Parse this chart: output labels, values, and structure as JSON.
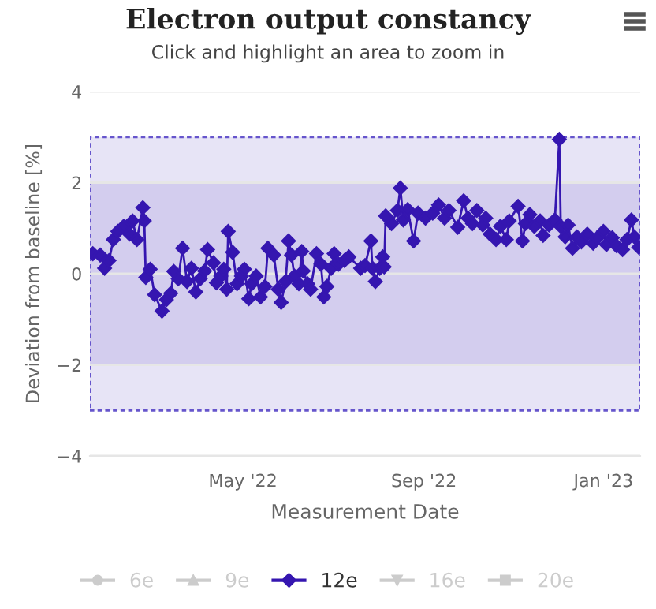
{
  "chart_data": {
    "type": "line",
    "title": "Electron output constancy",
    "subtitle": "Click and highlight an area to zoom in",
    "xlabel": "Measurement Date",
    "ylabel": "Deviation from baseline [%]",
    "xlim": [
      "2022-01-17",
      "2023-01-26"
    ],
    "xticks": [
      {
        "value": "2022-05-01",
        "label": "May '22"
      },
      {
        "value": "2022-09-01",
        "label": "Sep '22"
      },
      {
        "value": "2023-01-01",
        "label": "Jan '23"
      }
    ],
    "ylim": [
      -4,
      4
    ],
    "yticks": [
      {
        "value": -4,
        "label": "−4"
      },
      {
        "value": -2,
        "label": "−2"
      },
      0,
      2,
      4
    ],
    "grid": "y",
    "legend": "bottom",
    "line_style": "solid",
    "bands": [
      {
        "axis": "y",
        "from": -3,
        "to": 3,
        "color": "#e7e4f6"
      },
      {
        "axis": "y",
        "from": -2,
        "to": 2,
        "color": "#d3cdee"
      }
    ],
    "series": [
      {
        "name": "6e",
        "color": "#cccccc",
        "marker": "circle"
      },
      {
        "name": "9e",
        "color": "#cccccc",
        "marker": "triangle"
      },
      {
        "name": "12e",
        "color": "#3516b0",
        "marker": "diamond",
        "x": [
          "2022-01-19",
          "2022-01-24",
          "2022-01-27",
          "2022-01-30",
          "2022-02-02",
          "2022-02-05",
          "2022-02-09",
          "2022-02-13",
          "2022-02-15",
          "2022-02-18",
          "2022-02-22",
          "2022-02-23",
          "2022-02-24",
          "2022-02-27",
          "2022-03-02",
          "2022-03-07",
          "2022-03-10",
          "2022-03-13",
          "2022-03-15",
          "2022-03-18",
          "2022-03-21",
          "2022-03-24",
          "2022-03-27",
          "2022-03-30",
          "2022-04-02",
          "2022-04-05",
          "2022-04-07",
          "2022-04-11",
          "2022-04-13",
          "2022-04-16",
          "2022-04-18",
          "2022-04-20",
          "2022-04-21",
          "2022-04-24",
          "2022-04-27",
          "2022-04-30",
          "2022-05-02",
          "2022-05-05",
          "2022-05-07",
          "2022-05-10",
          "2022-05-13",
          "2022-05-16",
          "2022-05-18",
          "2022-05-22",
          "2022-05-25",
          "2022-05-27",
          "2022-05-30",
          "2022-06-01",
          "2022-06-03",
          "2022-06-05",
          "2022-06-08",
          "2022-06-10",
          "2022-06-11",
          "2022-06-14",
          "2022-06-16",
          "2022-06-20",
          "2022-06-23",
          "2022-06-25",
          "2022-06-27",
          "2022-06-30",
          "2022-07-02",
          "2022-07-05",
          "2022-07-09",
          "2022-07-12",
          "2022-07-20",
          "2022-07-23",
          "2022-07-27",
          "2022-07-28",
          "2022-07-30",
          "2022-08-02",
          "2022-08-04",
          "2022-08-05",
          "2022-08-06",
          "2022-08-10",
          "2022-08-14",
          "2022-08-16",
          "2022-08-18",
          "2022-08-21",
          "2022-08-25",
          "2022-08-28",
          "2022-09-02",
          "2022-09-07",
          "2022-09-11",
          "2022-09-15",
          "2022-09-18",
          "2022-09-24",
          "2022-09-28",
          "2022-10-01",
          "2022-10-04",
          "2022-10-07",
          "2022-10-11",
          "2022-10-13",
          "2022-10-16",
          "2022-10-20",
          "2022-10-23",
          "2022-10-27",
          "2022-10-29",
          "2022-11-04",
          "2022-11-07",
          "2022-11-09",
          "2022-11-12",
          "2022-11-15",
          "2022-11-19",
          "2022-11-21",
          "2022-11-25",
          "2022-11-29",
          "2022-12-02",
          "2022-12-03",
          "2022-12-06",
          "2022-12-08",
          "2022-12-11",
          "2022-12-14",
          "2022-12-17",
          "2022-12-21",
          "2022-12-25",
          "2022-12-28",
          "2023-01-01",
          "2023-01-03",
          "2023-01-07",
          "2023-01-10",
          "2023-01-14",
          "2023-01-17",
          "2023-01-20",
          "2023-01-22",
          "2023-01-25"
        ],
        "values": [
          0.44,
          0.41,
          0.12,
          0.29,
          0.75,
          0.93,
          1.04,
          0.87,
          1.16,
          0.75,
          1.45,
          1.16,
          -0.08,
          0.1,
          -0.46,
          -0.82,
          -0.57,
          -0.43,
          0.05,
          -0.11,
          0.56,
          -0.17,
          0.12,
          -0.4,
          -0.11,
          0.06,
          0.53,
          0.24,
          -0.2,
          -0.05,
          0.1,
          -0.34,
          0.93,
          0.47,
          -0.22,
          -0.05,
          0.1,
          -0.55,
          -0.22,
          -0.05,
          -0.51,
          -0.28,
          0.56,
          0.41,
          -0.34,
          -0.63,
          -0.17,
          0.72,
          0.41,
          -0.05,
          -0.22,
          0.49,
          0.06,
          -0.22,
          -0.34,
          0.44,
          0.21,
          -0.51,
          -0.28,
          0.12,
          0.44,
          0.21,
          0.29,
          0.37,
          0.12,
          0.18,
          0.72,
          0.12,
          -0.17,
          0.12,
          0.37,
          0.15,
          1.27,
          1.1,
          1.39,
          1.88,
          1.18,
          1.41,
          0.72,
          1.33,
          1.22,
          1.33,
          1.51,
          1.22,
          1.39,
          1.02,
          1.6,
          1.22,
          1.1,
          1.39,
          1.07,
          1.22,
          0.87,
          0.75,
          1.04,
          0.75,
          1.16,
          1.48,
          0.72,
          1.1,
          1.3,
          1.04,
          1.16,
          0.84,
          1.07,
          1.18,
          2.95,
          1.04,
          0.81,
          1.07,
          0.56,
          0.81,
          0.7,
          0.87,
          0.67,
          0.79,
          0.93,
          0.64,
          0.79,
          0.61,
          0.53,
          0.75,
          1.18,
          0.81,
          0.58
        ]
      },
      {
        "name": "16e",
        "color": "#cccccc",
        "marker": "triangle_down"
      },
      {
        "name": "20e",
        "color": "#cccccc",
        "marker": "square"
      }
    ]
  }
}
